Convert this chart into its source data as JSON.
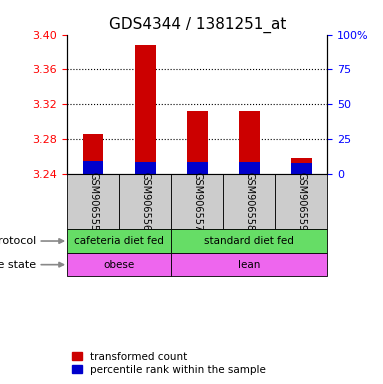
{
  "title": "GDS4344 / 1381251_at",
  "samples": [
    "GSM906555",
    "GSM906556",
    "GSM906557",
    "GSM906558",
    "GSM906559"
  ],
  "transformed_counts": [
    3.285,
    3.388,
    3.312,
    3.312,
    3.258
  ],
  "percentile_ranks": [
    3.254,
    3.253,
    3.253,
    3.253,
    3.252
  ],
  "base_value": 3.24,
  "ylim_left": [
    3.24,
    3.4
  ],
  "yticks_left": [
    3.24,
    3.28,
    3.32,
    3.36,
    3.4
  ],
  "yticks_right": [
    0,
    25,
    50,
    75,
    100
  ],
  "yright_labels": [
    "0",
    "25",
    "50",
    "75",
    "100%"
  ],
  "bar_width": 0.4,
  "red_color": "#CC0000",
  "blue_color": "#0000CC",
  "protocol_labels": [
    "cafeteria diet fed",
    "standard diet fed"
  ],
  "protocol_color": "#66DD66",
  "disease_labels": [
    "obese",
    "lean"
  ],
  "disease_color": "#EE66EE",
  "sample_box_color": "#CCCCCC",
  "title_fontsize": 11,
  "axis_fontsize": 8,
  "legend_fontsize": 7.5
}
